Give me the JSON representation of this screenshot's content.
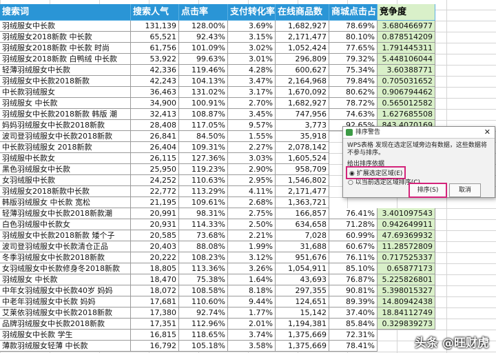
{
  "table": {
    "columns": [
      "搜索词",
      "搜索人气",
      "点击率",
      "支付转化率",
      "在线商品数",
      "商城点击占",
      "竞争度"
    ],
    "rows": [
      [
        "羽绒服女中长款",
        "131,139",
        "128.00%",
        "3.69%",
        "1,682,927",
        "78.69%",
        "3.680466977"
      ],
      [
        "羽绒服女2018新款 中长款",
        "65,521",
        "92.43%",
        "3.15%",
        "2,171,477",
        "80.10%",
        "0.878514209"
      ],
      [
        "羽绒服女2018新款 中长款 时尚",
        "61,756",
        "101.09%",
        "3.02%",
        "1,052,424",
        "77.65%",
        "1.791445311"
      ],
      [
        "羽绒服女2018新款 白鸭绒 中长款",
        "53,922",
        "99.63%",
        "3.01%",
        "296,809",
        "79.32%",
        "5.448106044"
      ],
      [
        "轻薄羽绒服女中长款",
        "42,336",
        "119.46%",
        "4.28%",
        "600,627",
        "75.34%",
        "3.60388771"
      ],
      [
        "羽绒服女中长款2018新款",
        "42,243",
        "104.13%",
        "3.47%",
        "2,164,968",
        "79.84%",
        "0.705031652"
      ],
      [
        "中长款羽绒服女",
        "36,463",
        "131.02%",
        "3.17%",
        "1,670,092",
        "80.62%",
        "0.906794462"
      ],
      [
        "羽绒服女 中长款",
        "34,900",
        "100.91%",
        "2.70%",
        "1,682,927",
        "78.72%",
        "0.565012582"
      ],
      [
        "羽绒服女中长款2018新款 韩版 潮",
        "32,413",
        "108.87%",
        "3.45%",
        "747,956",
        "74.63%",
        "1.627685508"
      ],
      [
        "妈妈羽绒服女中长款2018新款",
        "28,408",
        "117.05%",
        "9.57%",
        "3,773",
        "92.65%",
        "843.4070169"
      ],
      [
        "波司登羽绒服女中长款2018新款",
        "26,841",
        "84.50%",
        "1.55%",
        "35,918",
        null,
        null
      ],
      [
        "中长款羽绒服女 2018新款",
        "26,404",
        "109.31%",
        "2.27%",
        "2,078,142",
        null,
        null
      ],
      [
        "羽绒服中长款女",
        "26,115",
        "127.36%",
        "3.03%",
        "1,605,524",
        null,
        null
      ],
      [
        "黑色羽绒服女中长款",
        "25,950",
        "119.23%",
        "2.90%",
        "958,709",
        null,
        null
      ],
      [
        "女羽绒服中长款",
        "24,252",
        "110.63%",
        "2.95%",
        "1,546,802",
        null,
        null
      ],
      [
        "羽绒服女2018新款中长款",
        "22,772",
        "113.29%",
        "4.11%",
        "2,171,477",
        null,
        null
      ],
      [
        "韩版羽绒服女 中长款 宽松",
        "21,195",
        "109.61%",
        "2.68%",
        "1,363,721",
        null,
        null
      ],
      [
        "轻薄羽绒服女中长款2018新款潮",
        "20,991",
        "98.31%",
        "2.75%",
        "166,857",
        "76.41%",
        "3.401097543"
      ],
      [
        "白色羽绒服中长款女",
        "20,931",
        "114.33%",
        "2.50%",
        "634,658",
        "71.28%",
        "0.942649911"
      ],
      [
        "羽绒服女中长款2018新款 矮个子",
        "20,585",
        "73.68%",
        "2.21%",
        "7,028",
        "60.99%",
        "47.69369932"
      ],
      [
        "波司登羽绒服女中长款清仓正品",
        "20,403",
        "88.08%",
        "1.99%",
        "31,688",
        "60.67%",
        "11.28572809"
      ],
      [
        "冬季羽绒服女中长款2018新款",
        "20,222",
        "108.23%",
        "3.12%",
        "951,676",
        "76.11%",
        "0.717525337"
      ],
      [
        "女羽绒服女中长款修身冬2018新款",
        "18,805",
        "113.36%",
        "3.26%",
        "1,054,911",
        "85.10%",
        "0.65877173"
      ],
      [
        "羽绒服女 中长款",
        "18,470",
        "75.38%",
        "1.64%",
        "43,693",
        "76.87%",
        "5.225826801"
      ],
      [
        "中年女羽绒服女中长款40岁 妈妈",
        "18,072",
        "108.58%",
        "8.18%",
        "297,355",
        "90.81%",
        "5.398015327"
      ],
      [
        "中老年羽绒服女中长款 妈妈",
        "17,681",
        "110.60%",
        "9.44%",
        "124,651",
        "89.39%",
        "14.80942438"
      ],
      [
        "艾莱依羽绒服女中长款2018新款",
        "17,380",
        "92.74%",
        "1.77%",
        "15,142",
        "37.40%",
        "18.84112749"
      ],
      [
        "品牌羽绒服女中长款2018新款",
        "17,351",
        "112.96%",
        "2.01%",
        "1,194,381",
        "85.84%",
        "0.329839273"
      ],
      [
        "羽绒服女中长款 学生",
        "16,815",
        "118.65%",
        "3.74%",
        "1,375,669",
        "72.31%",
        null
      ],
      [
        "薄款羽绒服女轻薄 中长款",
        "16,792",
        "105.18%",
        "3.58%",
        "1,375,669",
        "78.41%",
        null
      ]
    ]
  },
  "dialog": {
    "title": "排序警告",
    "message": "WPS表格 发现在选定区域旁边有数据，这些数据将不参与排序。",
    "prompt": "给出排序依据",
    "options": [
      "扩展选定区域(E)",
      "以当前选定区域排序(C)"
    ],
    "buttons": [
      "排序(S)",
      "取消"
    ]
  },
  "watermark": "头条 @旺财虎"
}
